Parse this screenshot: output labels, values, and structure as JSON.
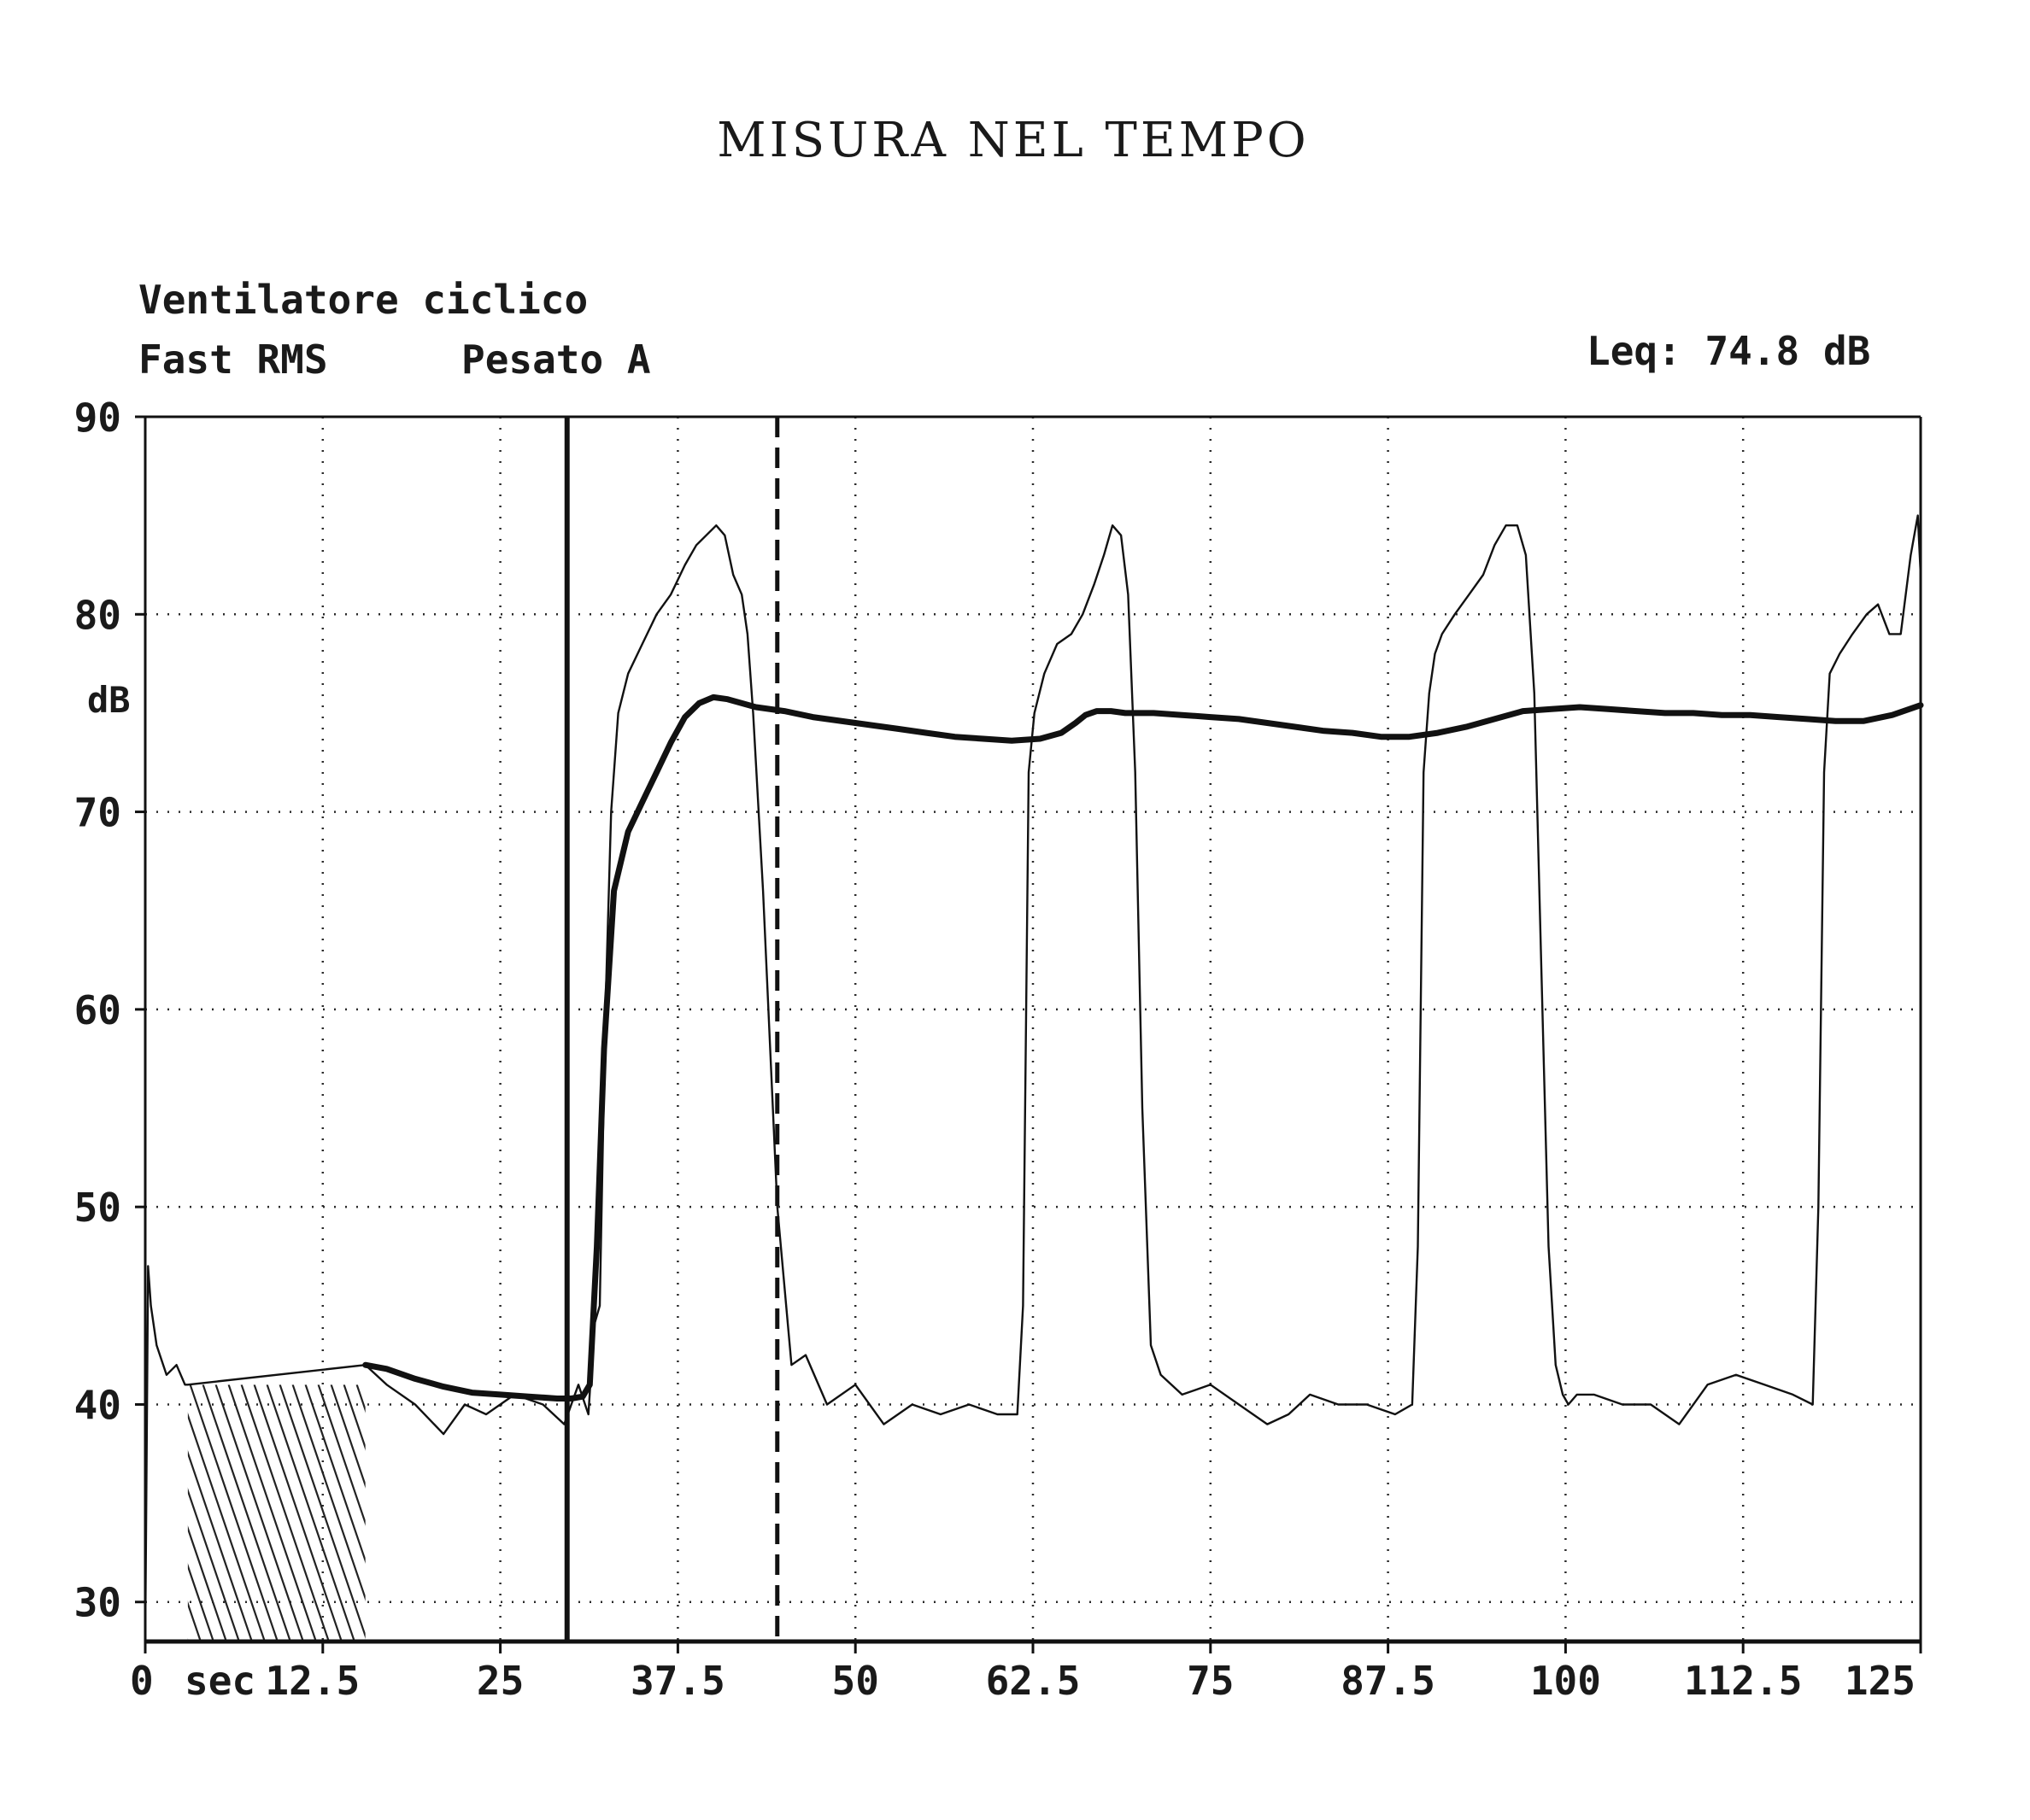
{
  "chart_data": {
    "type": "line",
    "title": "MISURA NEL TEMPO",
    "subtitle_lines": [
      "Ventilatore ciclico",
      "Fast RMS",
      "Pesato A"
    ],
    "leq_label": "Leq: 74.8 dB",
    "xlabel": "sec",
    "ylabel": "dB",
    "xlim": [
      0,
      125
    ],
    "ylim": [
      28,
      90
    ],
    "x_ticks": [
      0,
      12.5,
      25,
      37.5,
      50,
      62.5,
      75,
      87.5,
      100,
      112.5,
      125
    ],
    "x_tick_labels": [
      "0",
      "12.5",
      "25",
      "37.5",
      "50",
      "62.5",
      "75",
      "87.5",
      "100",
      "112.5",
      "125"
    ],
    "y_ticks": [
      30,
      40,
      50,
      60,
      70,
      80,
      90
    ],
    "y_tick_labels": [
      "30",
      "40",
      "50",
      "60",
      "70",
      "80",
      "90"
    ],
    "grid": true,
    "cursors": [
      {
        "style": "solid",
        "x": 29.7
      },
      {
        "style": "dashed",
        "x": 44.5
      }
    ],
    "hatched_region": {
      "x": [
        3,
        15.5
      ],
      "y": [
        28,
        41
      ]
    },
    "series": [
      {
        "style": "thin",
        "x": [
          0,
          0.2,
          0.4,
          0.8,
          1.5,
          2.2,
          2.8,
          3.0,
          15.5,
          17,
          19,
          21,
          22.5,
          24,
          26,
          28,
          29.5,
          30.5,
          31.2,
          31.6,
          32.0,
          32.4,
          32.8,
          33.3,
          34,
          35,
          36,
          37,
          38,
          38.8,
          39.5,
          40.2,
          40.8,
          41.4,
          42,
          42.4,
          42.8,
          43.5,
          44.5,
          45.5,
          46.5,
          48,
          50,
          52,
          54,
          56,
          58,
          60,
          61.4,
          61.8,
          62.2,
          62.6,
          63.3,
          64.2,
          65.2,
          66,
          66.8,
          67.5,
          68.1,
          68.7,
          69.2,
          69.7,
          70.2,
          70.8,
          71.5,
          73,
          75,
          77,
          79,
          80.5,
          82,
          84,
          86,
          88,
          89.2,
          89.6,
          90,
          90.4,
          90.8,
          91.3,
          92.2,
          93.2,
          94.2,
          95,
          95.8,
          96.6,
          97.2,
          97.8,
          98.3,
          98.8,
          99.3,
          99.8,
          100.2,
          100.8,
          102,
          104,
          106,
          108,
          110,
          112,
          114,
          116,
          117.4,
          117.8,
          118.2,
          118.6,
          119.3,
          120.2,
          121.2,
          122,
          122.8,
          123.6,
          124.3,
          124.8,
          125
        ],
        "values": [
          28,
          47,
          45,
          43,
          41.5,
          42,
          41,
          41,
          42,
          41,
          40,
          38.5,
          40,
          39.5,
          40.5,
          40,
          39,
          41,
          39.5,
          44,
          45,
          60,
          70,
          75,
          77,
          78.5,
          80,
          81,
          82.5,
          83.5,
          84,
          84.5,
          84,
          82,
          81,
          79,
          75,
          66,
          50,
          42,
          42.5,
          40,
          41,
          39,
          40,
          39.5,
          40,
          39.5,
          39.5,
          45,
          72,
          75,
          77,
          78.5,
          79,
          80,
          81.5,
          83,
          84.5,
          84,
          81,
          72,
          55,
          43,
          41.5,
          40.5,
          41,
          40,
          39,
          39.5,
          40.5,
          40,
          40,
          39.5,
          40,
          48,
          72,
          76,
          78,
          79,
          80,
          81,
          82,
          83.5,
          84.5,
          84.5,
          83,
          76,
          62,
          48,
          42,
          40.5,
          40,
          40.5,
          40.5,
          40,
          40,
          39,
          41,
          41.5,
          41,
          40.5,
          40,
          50,
          72,
          77,
          78,
          79,
          80,
          80.5,
          79,
          79,
          83,
          85,
          82
        ]
      },
      {
        "style": "thick",
        "x": [
          15.5,
          17,
          19,
          21,
          23,
          25,
          27,
          29,
          30,
          30.8,
          31.3,
          31.8,
          32.3,
          33,
          34,
          35,
          36,
          37,
          38,
          39,
          40,
          41,
          42,
          43,
          45,
          47,
          50,
          53,
          55,
          57,
          59,
          61,
          63,
          64.5,
          65.5,
          66.2,
          67,
          68,
          69,
          71,
          73,
          75,
          77,
          79,
          81,
          83,
          85,
          87,
          89,
          91,
          93,
          95,
          97,
          99,
          101,
          103,
          105,
          107,
          109,
          111,
          113,
          115,
          117,
          119,
          121,
          123,
          125
        ],
        "values": [
          42,
          41.8,
          41.3,
          40.9,
          40.6,
          40.5,
          40.4,
          40.3,
          40.3,
          40.4,
          41,
          48,
          58,
          66,
          69,
          70.5,
          72,
          73.5,
          74.8,
          75.5,
          75.8,
          75.7,
          75.5,
          75.3,
          75.1,
          74.8,
          74.5,
          74.2,
          74,
          73.8,
          73.7,
          73.6,
          73.7,
          74,
          74.5,
          74.9,
          75.1,
          75.1,
          75,
          75,
          74.9,
          74.8,
          74.7,
          74.5,
          74.3,
          74.1,
          74,
          73.8,
          73.8,
          74,
          74.3,
          74.7,
          75.1,
          75.2,
          75.3,
          75.2,
          75.1,
          75,
          75,
          74.9,
          74.9,
          74.8,
          74.7,
          74.6,
          74.6,
          74.9,
          75.4
        ]
      }
    ]
  }
}
